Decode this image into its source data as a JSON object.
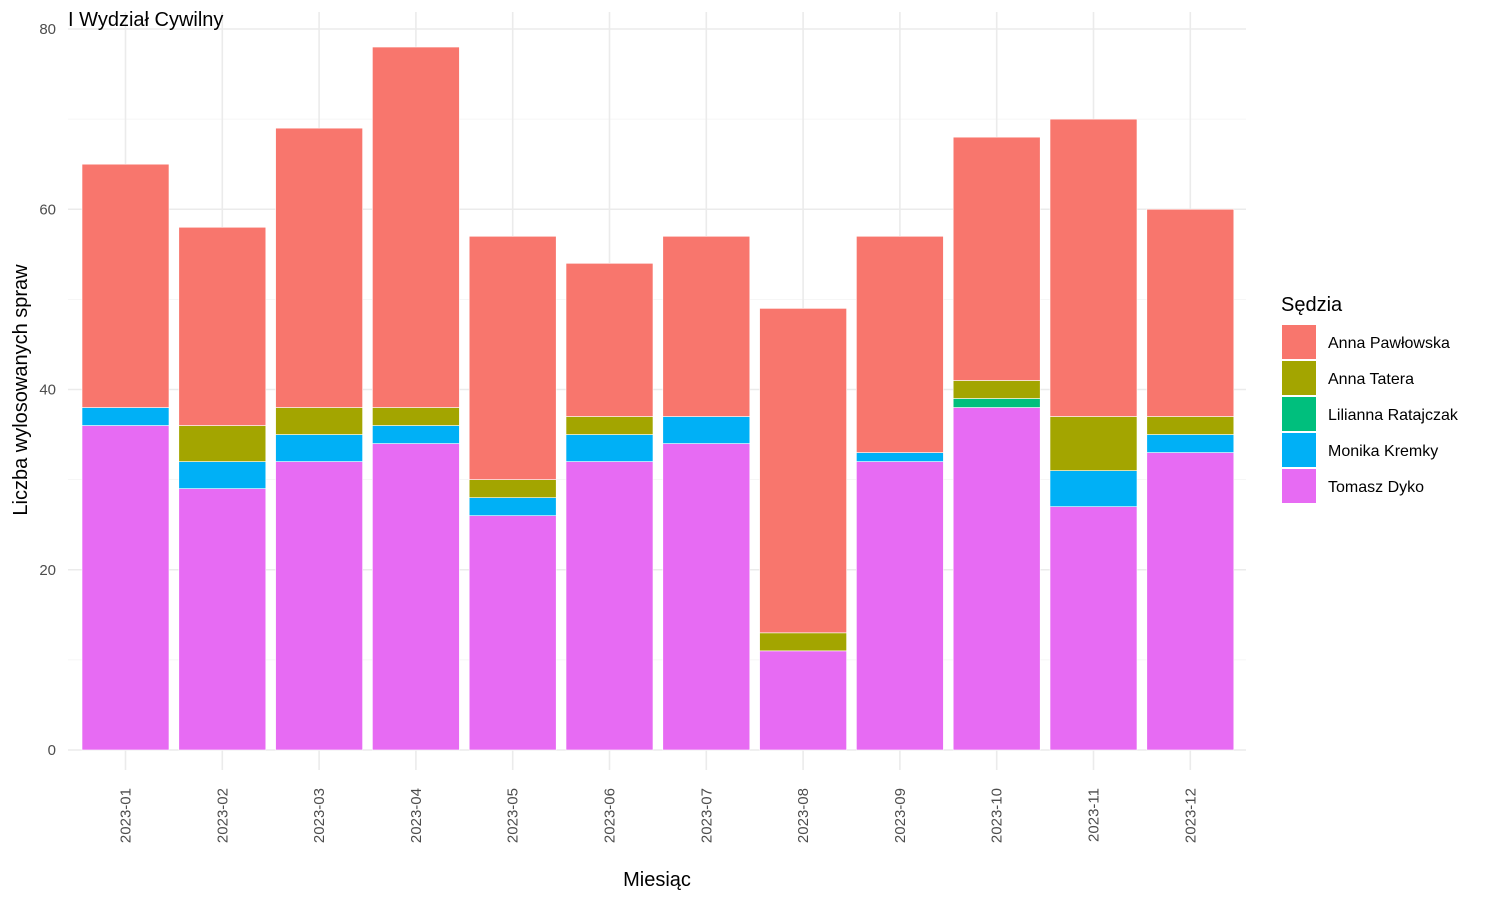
{
  "chart_data": {
    "type": "bar",
    "stacked": true,
    "title": "I Wydział Cywilny",
    "xlabel": "Miesiąc",
    "ylabel": "Liczba wylosowanych spraw",
    "ylim": [
      0,
      80
    ],
    "yticks": [
      0,
      20,
      40,
      60,
      80
    ],
    "grid": true,
    "legend": {
      "title": "Sędzia",
      "placement": "right"
    },
    "categories": [
      "2023-01",
      "2023-02",
      "2023-03",
      "2023-04",
      "2023-05",
      "2023-06",
      "2023-07",
      "2023-08",
      "2023-09",
      "2023-10",
      "2023-11",
      "2023-12"
    ],
    "series": [
      {
        "name": "Tomasz Dyko",
        "color": "#E76BF3",
        "values": [
          36,
          29,
          32,
          34,
          26,
          32,
          34,
          11,
          32,
          38,
          27,
          33
        ]
      },
      {
        "name": "Monika Kremky",
        "color": "#00B0F6",
        "values": [
          2,
          3,
          3,
          2,
          2,
          3,
          3,
          0,
          1,
          0,
          4,
          2
        ]
      },
      {
        "name": "Lilianna Ratajczak",
        "color": "#00BF7D",
        "values": [
          0,
          0,
          0,
          0,
          0,
          0,
          0,
          0,
          0,
          1,
          0,
          0
        ]
      },
      {
        "name": "Anna Tatera",
        "color": "#A3A500",
        "values": [
          0,
          4,
          3,
          2,
          2,
          2,
          0,
          2,
          0,
          2,
          6,
          2
        ]
      },
      {
        "name": "Anna Pawłowska",
        "color": "#F8766D",
        "values": [
          27,
          22,
          31,
          40,
          27,
          17,
          20,
          36,
          24,
          27,
          33,
          23
        ]
      }
    ],
    "legend_order": [
      "Anna Pawłowska",
      "Anna Tatera",
      "Lilianna Ratajczak",
      "Monika Kremky",
      "Tomasz Dyko"
    ]
  }
}
